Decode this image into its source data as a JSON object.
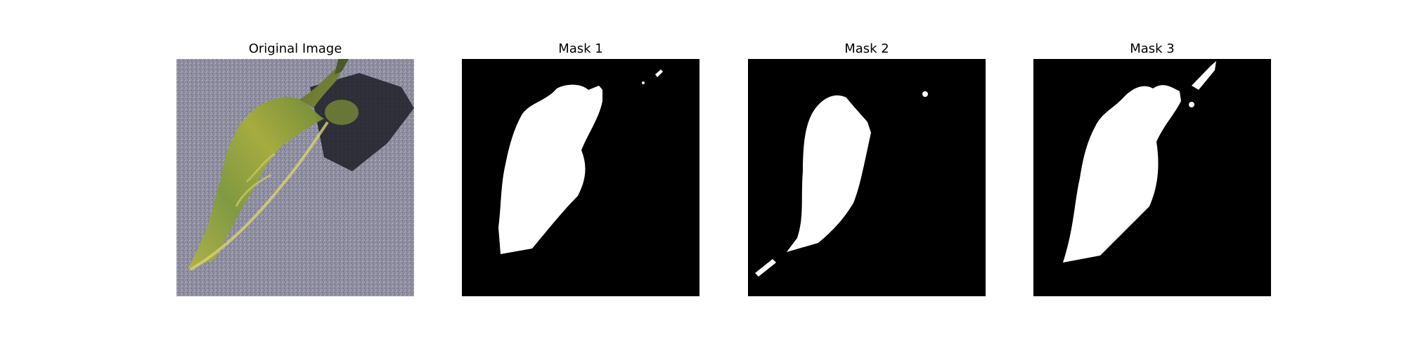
{
  "figure": {
    "panels": [
      {
        "title": "Original Image",
        "kind": "photo",
        "subject": "leaf",
        "background_color": "#8d8c9c",
        "leaf_color": "#9aa93a"
      },
      {
        "title": "Mask 1",
        "kind": "binary-mask",
        "background_color": "#000000",
        "mask_color": "#ffffff"
      },
      {
        "title": "Mask 2",
        "kind": "binary-mask",
        "background_color": "#000000",
        "mask_color": "#ffffff"
      },
      {
        "title": "Mask 3",
        "kind": "binary-mask",
        "background_color": "#000000",
        "mask_color": "#ffffff"
      }
    ]
  }
}
